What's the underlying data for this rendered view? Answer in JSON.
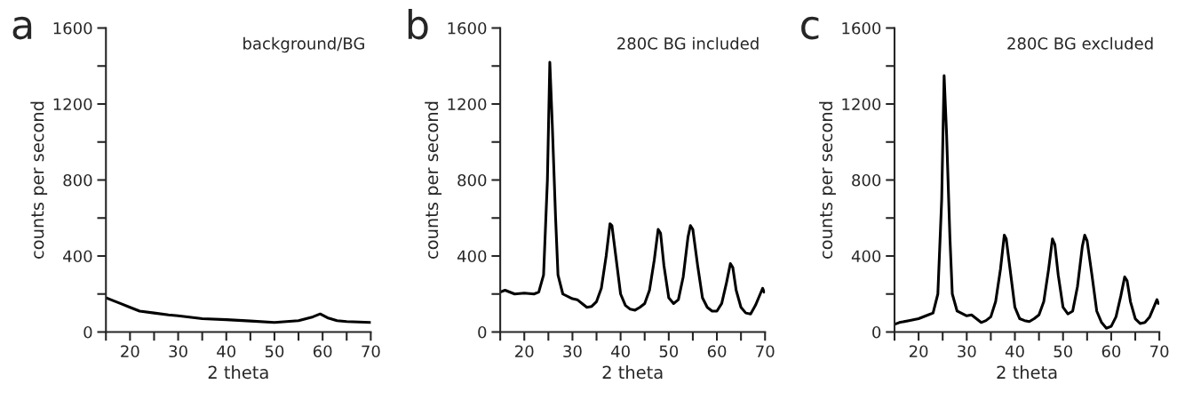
{
  "chart_data": [
    {
      "type": "line",
      "title": "a",
      "annotations": [
        "background/BG"
      ],
      "xlabel": "2 theta",
      "ylabel": "counts per second",
      "xlim": [
        15,
        70
      ],
      "ylim": [
        0,
        1600
      ],
      "xticks": [
        {
          "value": 15,
          "label": null
        },
        20,
        {
          "value": 25,
          "label": null
        },
        30,
        {
          "value": 35,
          "label": null
        },
        40,
        {
          "value": 45,
          "label": null
        },
        50,
        {
          "value": 55,
          "label": null
        },
        60,
        {
          "value": 65,
          "label": null
        },
        70
      ],
      "yticks": [
        0,
        {
          "value": 200,
          "label": null
        },
        400,
        {
          "value": 600,
          "label": null
        },
        800,
        {
          "value": 1000,
          "label": null
        },
        1200,
        {
          "value": 1400,
          "label": null
        },
        1600
      ],
      "grid": false,
      "marker": "none",
      "line_style": "solid",
      "x": [
        15,
        16,
        18,
        20,
        22,
        25,
        28,
        30,
        35,
        40,
        45,
        50,
        55,
        58,
        59.5,
        61,
        63,
        65,
        70
      ],
      "series": [
        {
          "color": "#000000",
          "values": [
            180,
            170,
            150,
            130,
            110,
            100,
            90,
            85,
            70,
            65,
            58,
            50,
            60,
            80,
            95,
            75,
            60,
            55,
            50
          ]
        }
      ]
    },
    {
      "type": "line",
      "title": "b",
      "annotations": [
        "280C BG included"
      ],
      "xlabel": "2 theta",
      "ylabel": "counts per second",
      "xlim": [
        15,
        70
      ],
      "ylim": [
        0,
        1600
      ],
      "xticks": [
        {
          "value": 15,
          "label": null
        },
        20,
        {
          "value": 25,
          "label": null
        },
        30,
        {
          "value": 35,
          "label": null
        },
        40,
        {
          "value": 45,
          "label": null
        },
        50,
        {
          "value": 55,
          "label": null
        },
        60,
        {
          "value": 65,
          "label": null
        },
        70
      ],
      "yticks": [
        0,
        {
          "value": 200,
          "label": null
        },
        400,
        {
          "value": 600,
          "label": null
        },
        800,
        {
          "value": 1000,
          "label": null
        },
        1200,
        {
          "value": 1400,
          "label": null
        },
        1600
      ],
      "grid": false,
      "marker": "none",
      "line_style": "solid",
      "x": [
        15,
        16,
        18,
        20,
        22,
        23,
        24,
        24.8,
        25.3,
        25.8,
        26.5,
        27,
        28,
        30,
        31,
        32,
        33,
        34,
        35,
        36,
        37,
        37.8,
        38.2,
        39,
        40,
        41,
        42,
        43,
        44,
        45,
        46,
        47,
        47.8,
        48.3,
        49,
        50,
        51,
        52,
        53,
        54,
        54.5,
        55,
        56,
        57,
        58,
        59,
        60,
        61,
        62,
        62.8,
        63.3,
        64,
        65,
        66,
        67,
        68,
        69,
        69.5,
        69.8
      ],
      "series": [
        {
          "color": "#000000",
          "values": [
            210,
            220,
            200,
            205,
            200,
            210,
            300,
            800,
            1420,
            1100,
            600,
            300,
            200,
            175,
            170,
            150,
            130,
            135,
            160,
            230,
            400,
            570,
            560,
            400,
            200,
            140,
            120,
            115,
            130,
            150,
            220,
            380,
            540,
            520,
            350,
            180,
            150,
            170,
            290,
            500,
            560,
            540,
            350,
            180,
            130,
            110,
            110,
            150,
            260,
            360,
            340,
            220,
            130,
            100,
            95,
            140,
            200,
            230,
            210
          ]
        }
      ]
    },
    {
      "type": "line",
      "title": "c",
      "annotations": [
        "280C BG excluded"
      ],
      "xlabel": "2 theta",
      "ylabel": "counts per second",
      "xlim": [
        15,
        70
      ],
      "ylim": [
        0,
        1600
      ],
      "xticks": [
        {
          "value": 15,
          "label": null
        },
        20,
        {
          "value": 25,
          "label": null
        },
        30,
        {
          "value": 35,
          "label": null
        },
        40,
        {
          "value": 45,
          "label": null
        },
        50,
        {
          "value": 55,
          "label": null
        },
        60,
        {
          "value": 65,
          "label": null
        },
        70
      ],
      "yticks": [
        0,
        {
          "value": 200,
          "label": null
        },
        400,
        {
          "value": 600,
          "label": null
        },
        800,
        {
          "value": 1000,
          "label": null
        },
        1200,
        {
          "value": 1400,
          "label": null
        },
        1600
      ],
      "grid": false,
      "marker": "none",
      "line_style": "solid",
      "x": [
        15,
        16,
        18,
        20,
        22,
        23,
        24,
        24.8,
        25.3,
        25.8,
        26.5,
        27,
        28,
        30,
        31,
        32,
        33,
        34,
        35,
        36,
        37,
        37.8,
        38.2,
        39,
        40,
        41,
        42,
        43,
        44,
        45,
        46,
        47,
        47.8,
        48.3,
        49,
        50,
        51,
        52,
        53,
        54,
        54.5,
        55,
        56,
        57,
        58,
        59,
        60,
        61,
        62,
        62.8,
        63.3,
        64,
        65,
        66,
        67,
        68,
        69,
        69.5,
        69.8
      ],
      "series": [
        {
          "color": "#000000",
          "values": [
            40,
            50,
            60,
            70,
            90,
            100,
            200,
            700,
            1350,
            1050,
            500,
            200,
            110,
            85,
            90,
            70,
            50,
            60,
            80,
            160,
            330,
            510,
            490,
            330,
            130,
            70,
            60,
            55,
            70,
            90,
            160,
            330,
            490,
            460,
            300,
            130,
            95,
            110,
            240,
            450,
            510,
            480,
            300,
            110,
            50,
            20,
            30,
            80,
            190,
            290,
            270,
            160,
            70,
            45,
            50,
            80,
            140,
            170,
            150
          ]
        }
      ]
    }
  ]
}
